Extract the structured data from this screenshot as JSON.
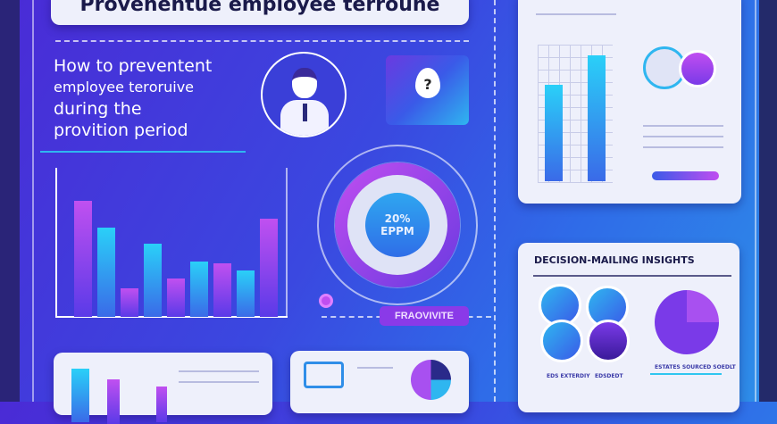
{
  "title": "Provenentue employee terroune",
  "headline": [
    "How to preventent",
    "employee terоruive",
    "during the",
    "provition period"
  ],
  "gauge": {
    "value": "20%",
    "unit": "EPPM"
  },
  "button_label": "FRAOVIVITE",
  "question_icon": "question-drop-icon",
  "insights": {
    "heading": "DECISION-MAILING INSIGHTS",
    "labels": [
      "EDS EXTERDIY",
      "EDSDEDT",
      "ESTATES SOURCED SOEDLT"
    ]
  },
  "left_chart": {
    "type": "bar",
    "values": [
      130,
      100,
      32,
      82,
      43,
      62,
      60,
      52,
      110
    ]
  },
  "colors": {
    "accent": "#8a3ae8",
    "cyan": "#2ad0f8",
    "bg": "#3a48e0"
  }
}
